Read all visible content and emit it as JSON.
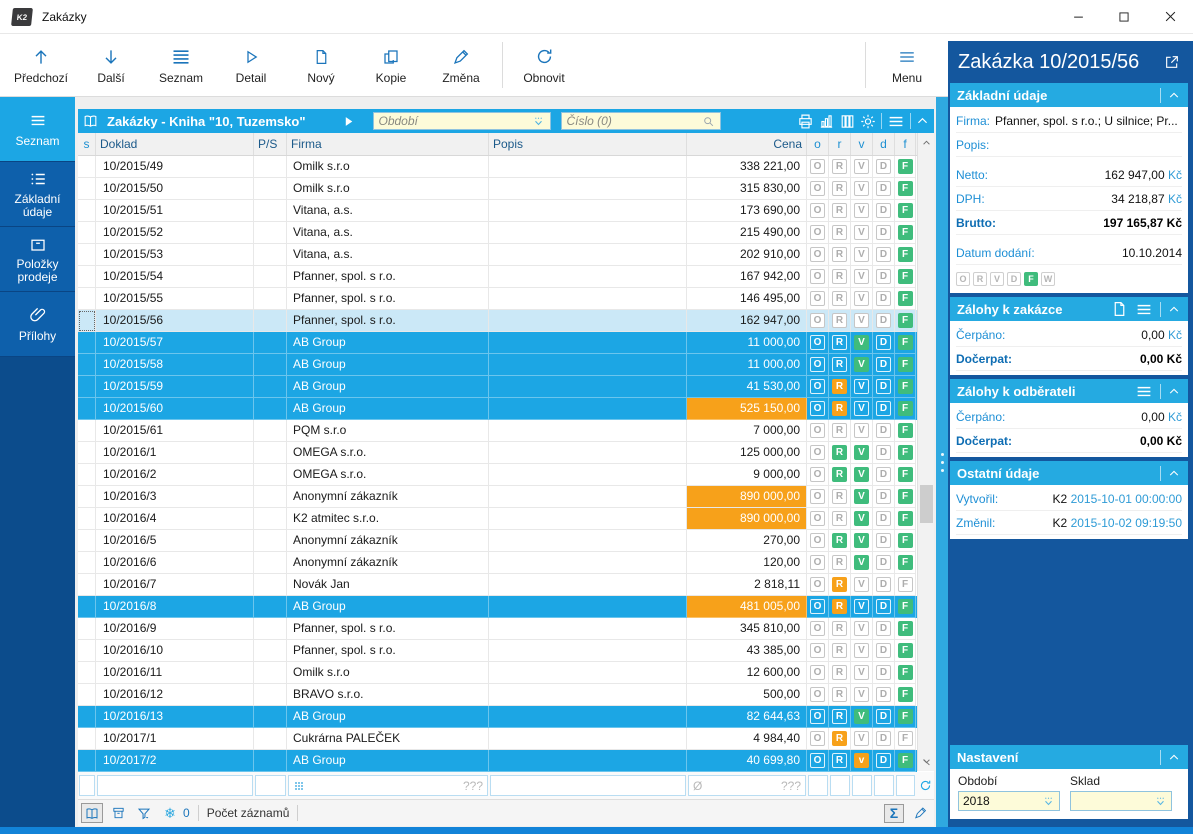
{
  "colors": {
    "accent": "#1CA6E4",
    "navy": "#14579E",
    "sidebar": "#0C4C8C",
    "sidebar_item": "#0E60AB",
    "green": "#3FBC7C",
    "orange": "#F7A11A",
    "current_row": "#CBE8F7",
    "input_cream": "#FDFBD9",
    "window_border": "#1283D8",
    "icon_blue": "#1B75BB"
  },
  "window": {
    "title": "Zakázky",
    "app_icon": "K2"
  },
  "toolbar": {
    "buttons": [
      {
        "label": "Předchozí",
        "icon": "arrow-up"
      },
      {
        "label": "Další",
        "icon": "arrow-down"
      },
      {
        "label": "Seznam",
        "icon": "lines4"
      },
      {
        "label": "Detail",
        "icon": "play"
      },
      {
        "label": "Nový",
        "icon": "document"
      },
      {
        "label": "Kopie",
        "icon": "copy"
      },
      {
        "label": "Změna",
        "icon": "pencil"
      },
      {
        "sep": true
      },
      {
        "label": "Obnovit",
        "icon": "refresh"
      }
    ],
    "menu_label": "Menu"
  },
  "sidebar": {
    "items": [
      {
        "label": "Seznam",
        "icon": "lines3",
        "active": true
      },
      {
        "label": "Základní údaje",
        "icon": "list"
      },
      {
        "label": "Položky prodeje",
        "icon": "box"
      },
      {
        "label": "Přílohy",
        "icon": "paperclip"
      }
    ]
  },
  "browser": {
    "title": "Zakázky - Kniha \"10, Tuzemsko\"",
    "obdobi_placeholder": "Období",
    "cislo_placeholder": "Číslo (0)",
    "columns": [
      "s",
      "Doklad",
      "P/S",
      "Firma",
      "Popis",
      "Cena",
      "o",
      "r",
      "v",
      "d",
      "f"
    ],
    "rows": [
      {
        "doklad": "10/2015/49",
        "firma": "Omilk s.r.o",
        "cena": "338 221,00",
        "flags": [
          "O|out",
          "R|out",
          "V|out",
          "D|out",
          "F|grn"
        ],
        "state": "normal",
        "cena_hl": false
      },
      {
        "doklad": "10/2015/50",
        "firma": "Omilk s.r.o",
        "cena": "315 830,00",
        "flags": [
          "O|out",
          "R|out",
          "V|out",
          "D|out",
          "F|grn"
        ],
        "state": "normal",
        "cena_hl": false
      },
      {
        "doklad": "10/2015/51",
        "firma": "Vitana, a.s.",
        "cena": "173 690,00",
        "flags": [
          "O|out",
          "R|out",
          "V|out",
          "D|out",
          "F|grn"
        ],
        "state": "normal",
        "cena_hl": false
      },
      {
        "doklad": "10/2015/52",
        "firma": "Vitana, a.s.",
        "cena": "215 490,00",
        "flags": [
          "O|out",
          "R|out",
          "V|out",
          "D|out",
          "F|grn"
        ],
        "state": "normal",
        "cena_hl": false
      },
      {
        "doklad": "10/2015/53",
        "firma": "Vitana, a.s.",
        "cena": "202 910,00",
        "flags": [
          "O|out",
          "R|out",
          "V|out",
          "D|out",
          "F|grn"
        ],
        "state": "normal",
        "cena_hl": false
      },
      {
        "doklad": "10/2015/54",
        "firma": "Pfanner, spol. s r.o.",
        "cena": "167 942,00",
        "flags": [
          "O|out",
          "R|out",
          "V|out",
          "D|out",
          "F|grn"
        ],
        "state": "normal",
        "cena_hl": false
      },
      {
        "doklad": "10/2015/55",
        "firma": "Pfanner, spol. s r.o.",
        "cena": "146 495,00",
        "flags": [
          "O|out",
          "R|out",
          "V|out",
          "D|out",
          "F|grn"
        ],
        "state": "normal",
        "cena_hl": false
      },
      {
        "doklad": "10/2015/56",
        "firma": "Pfanner, spol. s r.o.",
        "cena": "162 947,00",
        "flags": [
          "O|out",
          "R|out",
          "V|out",
          "D|out",
          "F|grn"
        ],
        "state": "current",
        "cena_hl": false
      },
      {
        "doklad": "10/2015/57",
        "firma": "AB Group",
        "cena": "11 000,00",
        "flags": [
          "O|out",
          "R|out",
          "V|grn",
          "D|out",
          "F|grn"
        ],
        "state": "selected",
        "cena_hl": false
      },
      {
        "doklad": "10/2015/58",
        "firma": "AB Group",
        "cena": "11 000,00",
        "flags": [
          "O|out",
          "R|out",
          "V|grn",
          "D|out",
          "F|grn"
        ],
        "state": "selected",
        "cena_hl": false
      },
      {
        "doklad": "10/2015/59",
        "firma": "AB Group",
        "cena": "41 530,00",
        "flags": [
          "O|out",
          "R|org",
          "V|out",
          "D|out",
          "F|grn"
        ],
        "state": "selected",
        "cena_hl": false
      },
      {
        "doklad": "10/2015/60",
        "firma": "AB Group",
        "cena": "525 150,00",
        "flags": [
          "O|out",
          "R|org",
          "V|out",
          "D|out",
          "F|grn"
        ],
        "state": "selected",
        "cena_hl": true
      },
      {
        "doklad": "10/2015/61",
        "firma": "PQM s.r.o",
        "cena": "7 000,00",
        "flags": [
          "O|out",
          "R|out",
          "V|out",
          "D|out",
          "F|grn"
        ],
        "state": "normal",
        "cena_hl": false
      },
      {
        "doklad": "10/2016/1",
        "firma": "OMEGA s.r.o.",
        "cena": "125 000,00",
        "flags": [
          "O|out",
          "R|grn",
          "V|grn",
          "D|out",
          "F|grn"
        ],
        "state": "normal",
        "cena_hl": false
      },
      {
        "doklad": "10/2016/2",
        "firma": "OMEGA s.r.o.",
        "cena": "9 000,00",
        "flags": [
          "O|out",
          "R|grn",
          "V|grn",
          "D|out",
          "F|grn"
        ],
        "state": "normal",
        "cena_hl": false
      },
      {
        "doklad": "10/2016/3",
        "firma": "Anonymní zákazník",
        "cena": "890 000,00",
        "flags": [
          "O|out",
          "R|out",
          "V|grn",
          "D|out",
          "F|grn"
        ],
        "state": "normal",
        "cena_hl": true
      },
      {
        "doklad": "10/2016/4",
        "firma": "K2 atmitec s.r.o.",
        "cena": "890 000,00",
        "flags": [
          "O|out",
          "R|out",
          "V|grn",
          "D|out",
          "F|grn"
        ],
        "state": "normal",
        "cena_hl": true
      },
      {
        "doklad": "10/2016/5",
        "firma": "Anonymní zákazník",
        "cena": "270,00",
        "flags": [
          "O|out",
          "R|grn",
          "V|grn",
          "D|out",
          "F|grn"
        ],
        "state": "normal",
        "cena_hl": false
      },
      {
        "doklad": "10/2016/6",
        "firma": "Anonymní zákazník",
        "cena": "120,00",
        "flags": [
          "O|out",
          "R|out",
          "V|grn",
          "D|out",
          "F|grn"
        ],
        "state": "normal",
        "cena_hl": false
      },
      {
        "doklad": "10/2016/7",
        "firma": "Novák Jan",
        "cena": "2 818,11",
        "flags": [
          "O|out",
          "R|org",
          "V|out",
          "D|out",
          "F|out"
        ],
        "state": "normal",
        "cena_hl": false
      },
      {
        "doklad": "10/2016/8",
        "firma": "AB Group",
        "cena": "481 005,00",
        "flags": [
          "O|out",
          "R|org",
          "V|out",
          "D|out",
          "F|grn"
        ],
        "state": "selected",
        "cena_hl": true
      },
      {
        "doklad": "10/2016/9",
        "firma": "Pfanner, spol. s r.o.",
        "cena": "345 810,00",
        "flags": [
          "O|out",
          "R|out",
          "V|out",
          "D|out",
          "F|grn"
        ],
        "state": "normal",
        "cena_hl": false
      },
      {
        "doklad": "10/2016/10",
        "firma": "Pfanner, spol. s r.o.",
        "cena": "43 385,00",
        "flags": [
          "O|out",
          "R|out",
          "V|out",
          "D|out",
          "F|grn"
        ],
        "state": "normal",
        "cena_hl": false
      },
      {
        "doklad": "10/2016/11",
        "firma": "Omilk s.r.o",
        "cena": "12 600,00",
        "flags": [
          "O|out",
          "R|out",
          "V|out",
          "D|out",
          "F|grn"
        ],
        "state": "normal",
        "cena_hl": false
      },
      {
        "doklad": "10/2016/12",
        "firma": "BRAVO s.r.o.",
        "cena": "500,00",
        "flags": [
          "O|out",
          "R|out",
          "V|out",
          "D|out",
          "F|grn"
        ],
        "state": "normal",
        "cena_hl": false
      },
      {
        "doklad": "10/2016/13",
        "firma": "AB Group",
        "cena": "82 644,63",
        "flags": [
          "O|out",
          "R|out",
          "V|grn",
          "D|out",
          "F|grn"
        ],
        "state": "selected",
        "cena_hl": false
      },
      {
        "doklad": "10/2017/1",
        "firma": "Cukrárna PALEČEK",
        "cena": "4 984,40",
        "flags": [
          "O|out",
          "R|org",
          "V|out",
          "D|out",
          "F|out"
        ],
        "state": "normal",
        "cena_hl": false
      },
      {
        "doklad": "10/2017/2",
        "firma": "AB Group",
        "cena": "40 699,80",
        "flags": [
          "O|out",
          "R|out",
          "v|org",
          "D|out",
          "F|grn"
        ],
        "state": "selected",
        "cena_hl": false
      }
    ],
    "summary": {
      "firma_value": "???",
      "cena_symbol": "Ø",
      "cena_value": "???"
    },
    "statusbar": {
      "freeze_count": "0",
      "count_label": "Počet záznamů"
    }
  },
  "panel": {
    "title": "Zakázka 10/2015/56",
    "sections": [
      {
        "id": "zakladni-udaje",
        "title": "Základní údaje",
        "icons": [],
        "rows": [
          {
            "label": "Firma:",
            "value": "Pfanner, spol. s r.o.; U silnice; Pr...",
            "type": "inline"
          },
          {
            "label": "Popis:",
            "value": "",
            "type": "inline"
          },
          {
            "label": "Netto:",
            "value": "162 947,00",
            "suffix": " Kč",
            "type": "amount",
            "gap": true
          },
          {
            "label": "DPH:",
            "value": "34 218,87",
            "suffix": " Kč",
            "type": "amount"
          },
          {
            "label": "Brutto:",
            "value": "197 165,87",
            "suffix": " Kč",
            "type": "amount",
            "bold": true
          },
          {
            "label": "Datum dodání:",
            "value": "10.10.2014",
            "suffix": "",
            "type": "amount",
            "gap": true
          }
        ],
        "flags": [
          "O|out",
          "R|out",
          "V|out",
          "D|out",
          "F|grn",
          "W|out"
        ]
      },
      {
        "id": "zalohy-k-zakazce",
        "title": "Zálohy k zakázce",
        "icons": [
          "document",
          "lines3"
        ],
        "rows": [
          {
            "label": "Čerpáno:",
            "value": "0,00",
            "suffix": " Kč",
            "type": "amount"
          },
          {
            "label": "Dočerpat:",
            "value": "0,00",
            "suffix": " Kč",
            "type": "amount",
            "bold": true
          }
        ]
      },
      {
        "id": "zalohy-k-odberateli",
        "title": "Zálohy k odběrateli",
        "icons": [
          "lines3"
        ],
        "rows": [
          {
            "label": "Čerpáno:",
            "value": "0,00",
            "suffix": " Kč",
            "type": "amount"
          },
          {
            "label": "Dočerpat:",
            "value": "0,00",
            "suffix": " Kč",
            "type": "amount",
            "bold": true
          }
        ]
      },
      {
        "id": "ostatni-udaje",
        "title": "Ostatní údaje",
        "icons": [],
        "rows": [
          {
            "label": "Vytvořil:",
            "value": "K2",
            "suffix": " 2015-10-01 00:00:00",
            "type": "amount"
          },
          {
            "label": "Změnil:",
            "value": "K2",
            "suffix": " 2015-10-02 09:19:50",
            "type": "amount"
          }
        ]
      }
    ],
    "nastaveni": {
      "title": "Nastavení",
      "fields": [
        {
          "label": "Období",
          "value": "2018"
        },
        {
          "label": "Sklad",
          "value": ""
        }
      ]
    }
  }
}
